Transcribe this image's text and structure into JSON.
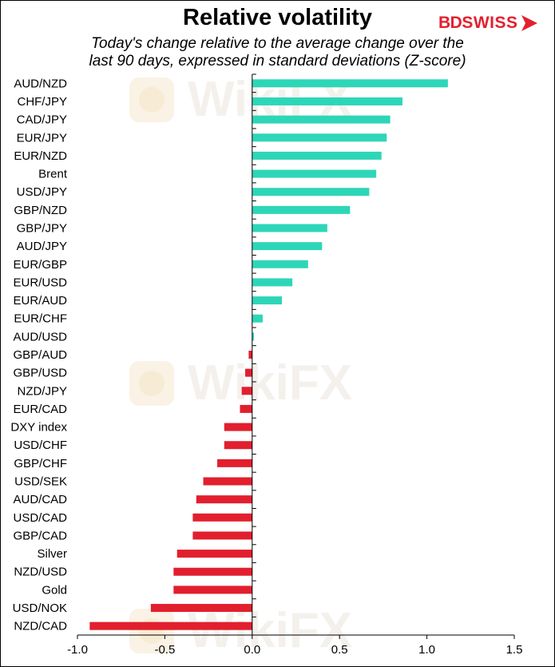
{
  "chart_data": {
    "type": "bar",
    "orientation": "horizontal",
    "title": "Relative volatility",
    "subtitle_lines": [
      "Today's change relative to the  average change over the",
      "last 90 days, expressed in standard deviations (Z-score)"
    ],
    "categories": [
      "AUD/NZD",
      "CHF/JPY",
      "CAD/JPY",
      "EUR/JPY",
      "EUR/NZD",
      "Brent",
      "USD/JPY",
      "GBP/NZD",
      "GBP/JPY",
      "AUD/JPY",
      "EUR/GBP",
      "EUR/USD",
      "EUR/AUD",
      "EUR/CHF",
      "AUD/USD",
      "GBP/AUD",
      "GBP/USD",
      "NZD/JPY",
      "EUR/CAD",
      "DXY index",
      "USD/CHF",
      "GBP/CHF",
      "USD/SEK",
      "AUD/CAD",
      "USD/CAD",
      "GBP/CAD",
      "Silver",
      "NZD/USD",
      "Gold",
      "USD/NOK",
      "NZD/CAD"
    ],
    "values": [
      1.12,
      0.86,
      0.79,
      0.77,
      0.74,
      0.71,
      0.67,
      0.56,
      0.43,
      0.4,
      0.32,
      0.23,
      0.17,
      0.06,
      0.01,
      -0.02,
      -0.04,
      -0.06,
      -0.07,
      -0.16,
      -0.16,
      -0.2,
      -0.28,
      -0.32,
      -0.34,
      -0.34,
      -0.43,
      -0.45,
      -0.45,
      -0.58,
      -0.93
    ],
    "xlim": [
      -1.0,
      1.5
    ],
    "xticks": [
      "-1.0",
      "-0.5",
      "0.0",
      "0.5",
      "1.0",
      "1.5"
    ],
    "xtick_values": [
      -1.0,
      -0.5,
      0.0,
      0.5,
      1.0,
      1.5
    ],
    "colors": {
      "positive": "#2ed6b8",
      "negative": "#e21f2e"
    },
    "grid": false,
    "legend": "none"
  },
  "brand": {
    "logo_bd": "BD",
    "logo_swiss": "SWISS",
    "color": "#e4202e"
  },
  "watermark": {
    "text": "WikiFX",
    "color": "#f3ece4"
  }
}
